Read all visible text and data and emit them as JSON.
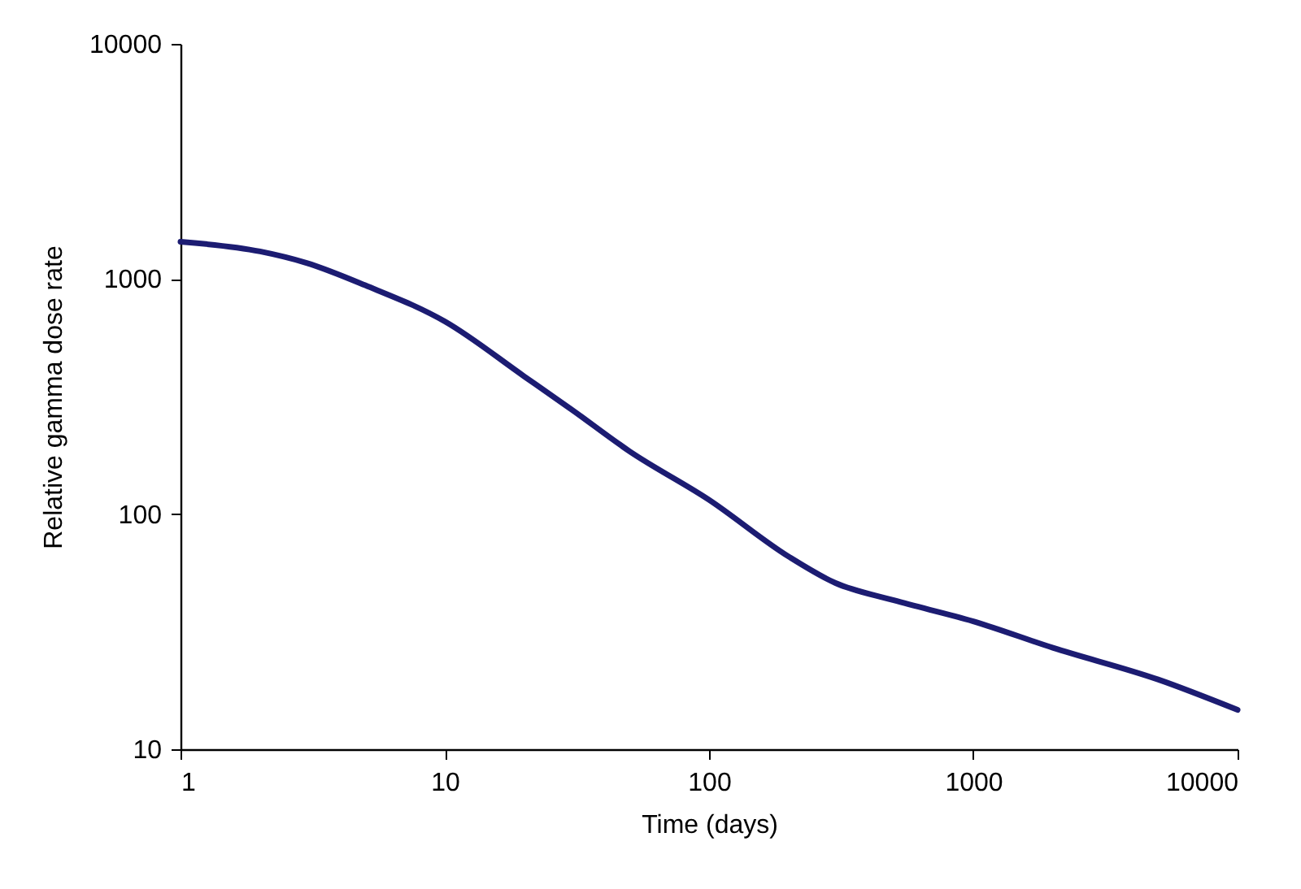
{
  "chart_data": {
    "type": "line",
    "xlabel": "Time (days)",
    "ylabel": "Relative gamma dose rate",
    "log": "xy",
    "grid": false,
    "marker": "none",
    "line_style": "solid",
    "xlim": [
      1,
      10000
    ],
    "xticks": [
      1,
      10,
      100,
      1000,
      10000
    ],
    "ylim": [
      10,
      10000
    ],
    "yticks": [
      10,
      100,
      1000,
      10000
    ],
    "x": [
      1,
      2,
      3,
      5,
      10,
      20,
      30,
      50,
      100,
      200,
      300,
      500,
      1000,
      2000,
      5000,
      10000
    ],
    "series": [
      {
        "color": "#1c1c72",
        "values": [
          1440,
          1310,
          1170,
          940,
          660,
          385,
          280,
          185,
          115,
          66,
          51,
          43,
          35,
          27,
          19.8,
          14.7
        ]
      }
    ]
  }
}
